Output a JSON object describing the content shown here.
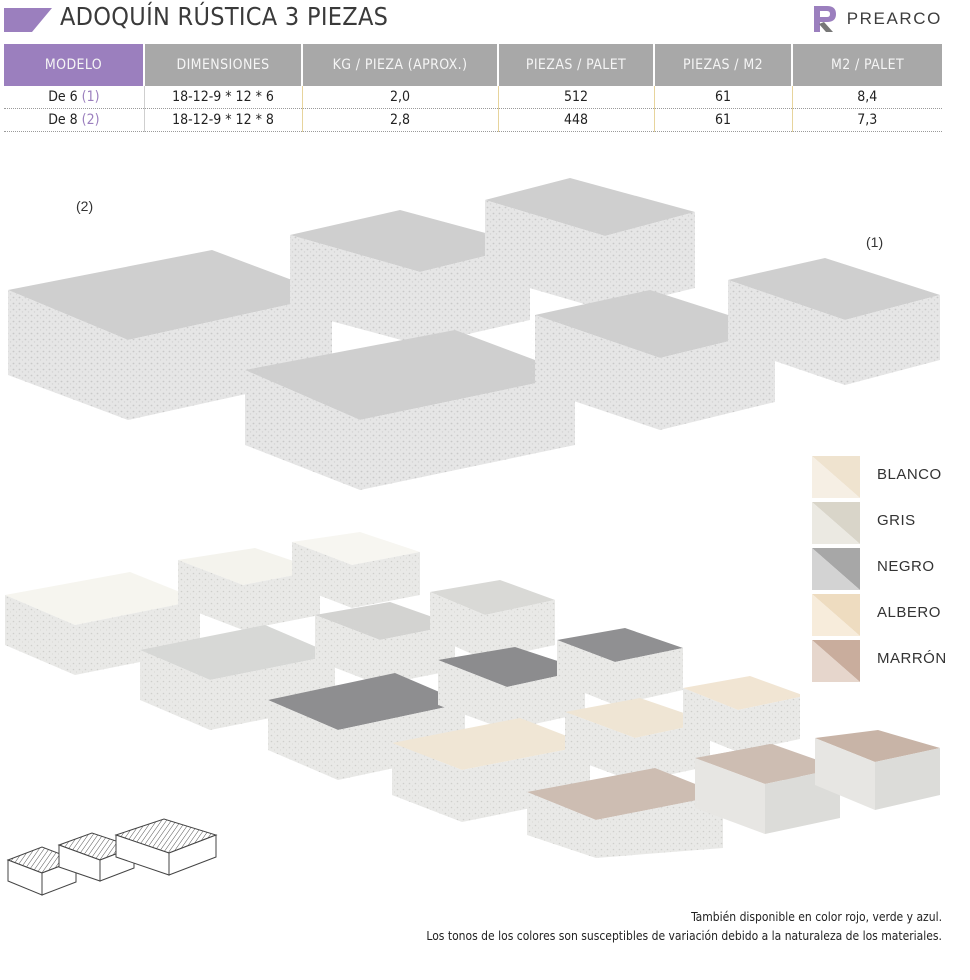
{
  "header": {
    "title": "ADOQUÍN RÚSTICA 3 PIEZAS",
    "accent_color": "#9b7fbe",
    "logo_icon": "pr-monogram-icon",
    "logo_text": "PREARCO"
  },
  "table": {
    "columns": [
      "MODELO",
      "DIMENSIONES",
      "KG / PIEZA (APROX.)",
      "PIEZAS / PALET",
      "PIEZAS / M2",
      "M2 / PALET"
    ],
    "rows": [
      {
        "model": "De 6",
        "ref": "(1)",
        "dimensions": "18-12-9 * 12 * 6",
        "kg": "2,0",
        "pieces_palet": "512",
        "pieces_m2": "61",
        "m2_palet": "8,4"
      },
      {
        "model": "De 8",
        "ref": "(2)",
        "dimensions": "18-12-9 * 12 * 8",
        "kg": "2,8",
        "pieces_palet": "448",
        "pieces_m2": "61",
        "m2_palet": "7,3"
      }
    ]
  },
  "product_labels": {
    "left": "(2)",
    "right": "(1)"
  },
  "colors": [
    {
      "name": "BLANCO",
      "hex": "#efe3cf"
    },
    {
      "name": "GRIS",
      "hex": "#d9d5c9"
    },
    {
      "name": "NEGRO",
      "hex": "#a7a7a7"
    },
    {
      "name": "ALBERO",
      "hex": "#eedcc0"
    },
    {
      "name": "MARRÓN",
      "hex": "#c9ad9d"
    }
  ],
  "footer": {
    "line1": "También disponible en color rojo, verde y azul.",
    "line2": "Los tonos de los colores son susceptibles de variación debido a la naturaleza de los materiales."
  }
}
